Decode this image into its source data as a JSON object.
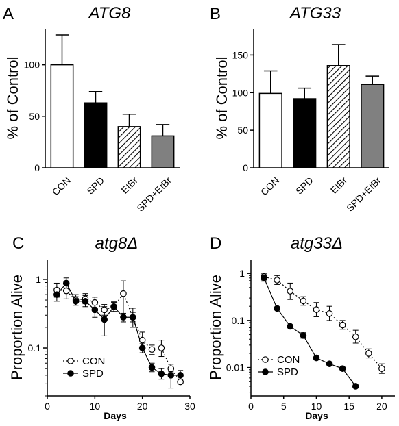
{
  "chart_data": [
    {
      "panel": "A",
      "type": "bar",
      "title": "ATG8",
      "ylabel": "% of Control",
      "xlabel": "",
      "categories": [
        "CON",
        "SPD",
        "EtBr",
        "SPD+EtBr"
      ],
      "values": [
        100,
        63,
        40,
        31
      ],
      "errors": [
        29,
        11,
        12,
        11
      ],
      "ylim": [
        0,
        135
      ],
      "yticks": [
        0,
        50,
        100
      ],
      "bar_styles": [
        "white",
        "black",
        "hatched",
        "gray"
      ]
    },
    {
      "panel": "B",
      "type": "bar",
      "title": "ATG33",
      "ylabel": "% of Control",
      "xlabel": "",
      "categories": [
        "CON",
        "SPD",
        "EtBr",
        "SPD+EtBr"
      ],
      "values": [
        99,
        92,
        136,
        111
      ],
      "errors": [
        30,
        14,
        28,
        11
      ],
      "ylim": [
        0,
        185
      ],
      "yticks": [
        0,
        50,
        100,
        150
      ],
      "bar_styles": [
        "white",
        "black",
        "hatched",
        "gray"
      ]
    },
    {
      "panel": "C",
      "type": "line",
      "title": "atg8Δ",
      "ylabel": "Proportion Alive",
      "xlabel": "Days",
      "xlim": [
        0,
        30
      ],
      "xticks": [
        0,
        10,
        20,
        30
      ],
      "ylim": [
        0.02,
        1.9
      ],
      "yscale": "log",
      "yticks": [
        0.1,
        1
      ],
      "yticklabels": [
        "0.1",
        "1"
      ],
      "legend_position": "bottom-left",
      "series": [
        {
          "name": "CON",
          "marker": "open-circle",
          "line": "dotted",
          "points": [
            {
              "x": 2,
              "y": 0.7,
              "lo": 0.55,
              "hi": 0.88
            },
            {
              "x": 4,
              "y": 0.68,
              "lo": 0.52,
              "hi": 0.92
            },
            {
              "x": 6,
              "y": 0.5,
              "lo": 0.42,
              "hi": 0.6
            },
            {
              "x": 8,
              "y": 0.52,
              "lo": 0.44,
              "hi": 0.62
            },
            {
              "x": 10,
              "y": 0.46,
              "lo": 0.38,
              "hi": 0.55
            },
            {
              "x": 12,
              "y": 0.36,
              "lo": 0.3,
              "hi": 0.43
            },
            {
              "x": 14,
              "y": 0.4,
              "lo": 0.34,
              "hi": 0.47
            },
            {
              "x": 16,
              "y": 0.62,
              "lo": 0.3,
              "hi": 0.95
            },
            {
              "x": 18,
              "y": 0.28,
              "lo": 0.2,
              "hi": 0.38
            },
            {
              "x": 20,
              "y": 0.13,
              "lo": 0.1,
              "hi": 0.17
            },
            {
              "x": 22,
              "y": 0.095,
              "lo": 0.08,
              "hi": 0.11
            },
            {
              "x": 24,
              "y": 0.1,
              "lo": 0.075,
              "hi": 0.13
            },
            {
              "x": 26,
              "y": 0.05,
              "lo": 0.045,
              "hi": 0.058
            },
            {
              "x": 28,
              "y": 0.032,
              "lo": 0.03,
              "hi": 0.035
            }
          ]
        },
        {
          "name": "SPD",
          "marker": "filled-circle",
          "line": "solid",
          "points": [
            {
              "x": 2,
              "y": 0.6,
              "lo": 0.48,
              "hi": 0.75
            },
            {
              "x": 4,
              "y": 0.88,
              "lo": 0.75,
              "hi": 1.05
            },
            {
              "x": 6,
              "y": 0.48,
              "lo": 0.42,
              "hi": 0.56
            },
            {
              "x": 8,
              "y": 0.48,
              "lo": 0.4,
              "hi": 0.58
            },
            {
              "x": 10,
              "y": 0.36,
              "lo": 0.28,
              "hi": 0.45
            },
            {
              "x": 12,
              "y": 0.26,
              "lo": 0.15,
              "hi": 0.4
            },
            {
              "x": 14,
              "y": 0.4,
              "lo": 0.34,
              "hi": 0.46
            },
            {
              "x": 16,
              "y": 0.28,
              "lo": 0.24,
              "hi": 0.32
            },
            {
              "x": 18,
              "y": 0.28,
              "lo": 0.24,
              "hi": 0.33
            },
            {
              "x": 20,
              "y": 0.1,
              "lo": 0.085,
              "hi": 0.115
            },
            {
              "x": 22,
              "y": 0.052,
              "lo": 0.045,
              "hi": 0.06
            },
            {
              "x": 24,
              "y": 0.042,
              "lo": 0.035,
              "hi": 0.05
            },
            {
              "x": 26,
              "y": 0.04,
              "lo": 0.026,
              "hi": 0.058
            },
            {
              "x": 28,
              "y": 0.04,
              "lo": 0.034,
              "hi": 0.047
            }
          ]
        }
      ]
    },
    {
      "panel": "D",
      "type": "line",
      "title": "atg33Δ",
      "ylabel": "Proportion Alive",
      "xlabel": "Days",
      "xlim": [
        0,
        22
      ],
      "xticks": [
        0,
        5,
        10,
        15,
        20
      ],
      "ylim": [
        0.0025,
        1.9
      ],
      "yscale": "log",
      "yticks": [
        0.01,
        0.1,
        1
      ],
      "yticklabels": [
        "0.01",
        "0.1",
        "1"
      ],
      "legend_position": "bottom-left",
      "series": [
        {
          "name": "CON",
          "marker": "open-circle",
          "line": "dotted",
          "points": [
            {
              "x": 2,
              "y": 0.85,
              "lo": 0.72,
              "hi": 1.0
            },
            {
              "x": 4,
              "y": 0.72,
              "lo": 0.58,
              "hi": 0.9
            },
            {
              "x": 6,
              "y": 0.42,
              "lo": 0.28,
              "hi": 0.62
            },
            {
              "x": 8,
              "y": 0.26,
              "lo": 0.21,
              "hi": 0.32
            },
            {
              "x": 10,
              "y": 0.17,
              "lo": 0.12,
              "hi": 0.24
            },
            {
              "x": 12,
              "y": 0.14,
              "lo": 0.1,
              "hi": 0.2
            },
            {
              "x": 14,
              "y": 0.08,
              "lo": 0.065,
              "hi": 0.1
            },
            {
              "x": 16,
              "y": 0.045,
              "lo": 0.033,
              "hi": 0.062
            },
            {
              "x": 18,
              "y": 0.02,
              "lo": 0.016,
              "hi": 0.025
            },
            {
              "x": 20,
              "y": 0.0095,
              "lo": 0.0075,
              "hi": 0.012
            }
          ]
        },
        {
          "name": "SPD",
          "marker": "filled-circle",
          "line": "solid",
          "points": [
            {
              "x": 2,
              "y": 0.8,
              "lo": 0.68,
              "hi": 0.94
            },
            {
              "x": 4,
              "y": 0.18
            },
            {
              "x": 6,
              "y": 0.075
            },
            {
              "x": 8,
              "y": 0.048,
              "lo": 0.042,
              "hi": 0.055
            },
            {
              "x": 10,
              "y": 0.016
            },
            {
              "x": 12,
              "y": 0.012
            },
            {
              "x": 14,
              "y": 0.0095
            },
            {
              "x": 16,
              "y": 0.004
            }
          ]
        }
      ]
    }
  ]
}
